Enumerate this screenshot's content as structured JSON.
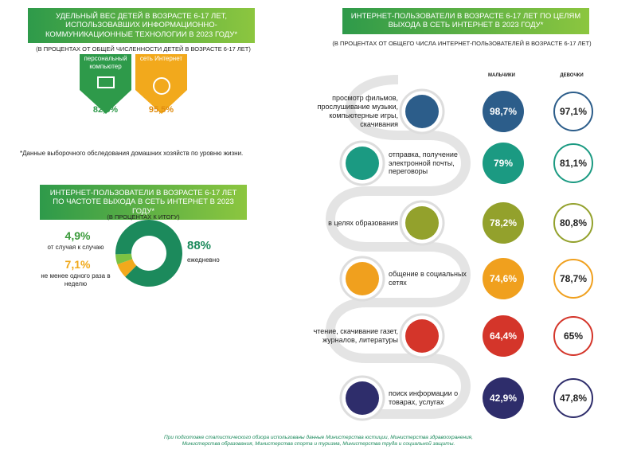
{
  "panel_devices": {
    "title": "УДЕЛЬНЫЙ ВЕС ДЕТЕЙ В ВОЗРАСТЕ 6-17 ЛЕТ, ИСПОЛЬЗОВАВШИХ ИНФОРМАЦИОННО-КОММУНИКАЦИОННЫЕ ТЕХНОЛОГИИ В 2023 ГОДУ*",
    "subtitle": "(В ПРОЦЕНТАХ ОТ ОБЩЕЙ ЧИСЛЕННОСТИ ДЕТЕЙ В ВОЗРАСТЕ 6-17 ЛЕТ)",
    "items": [
      {
        "label": "персональный компьютер",
        "value": "82,8%"
      },
      {
        "label": "сеть Интернет",
        "value": "95,5%"
      }
    ],
    "footnote": "*Данные выборочного обследования домашних хозяйств по уровню жизни."
  },
  "panel_frequency": {
    "title": "ИНТЕРНЕТ-ПОЛЬЗОВАТЕЛИ В ВОЗРАСТЕ 6-17 ЛЕТ ПО ЧАСТОТЕ ВЫХОДА В СЕТЬ ИНТЕРНЕТ В 2023 ГОДУ*",
    "subtitle": "(В ПРОЦЕНТАХ К ИТОГУ)",
    "type": "donut",
    "labels": [
      "от случая к случаю",
      "не менее одного раза в неделю",
      "ежедневно"
    ],
    "values": [
      4.9,
      7.1,
      88
    ],
    "value_labels": [
      "4,9%",
      "7,1%",
      "88%"
    ],
    "colors": [
      "#7cc242",
      "#f2a91c",
      "#1c8a5c"
    ]
  },
  "panel_purposes": {
    "title": "ИНТЕРНЕТ-ПОЛЬЗОВАТЕЛИ В ВОЗРАСТЕ 6-17 ЛЕТ ПО ЦЕЛЯМ ВЫХОДА В СЕТЬ ИНТЕРНЕТ В 2023 ГОДУ*",
    "subtitle": "(В ПРОЦЕНТАХ ОТ ОБЩЕГО ЧИСЛА ИНТЕРНЕТ-ПОЛЬЗОВАТЕЛЕЙ В ВОЗРАСТЕ 6-17 ЛЕТ)",
    "legend": [
      "МАЛЬЧИКИ",
      "ДЕВОЧКИ"
    ],
    "rows": [
      {
        "label": "просмотр фильмов, прослушивание музыки, компьютерные игры, скачивания",
        "boys": "98,7%",
        "girls": "97,1%",
        "color": "#2c5d8a"
      },
      {
        "label": "отправка, получение электронной почты, переговоры",
        "boys": "79%",
        "girls": "81,1%",
        "color": "#1b9a82"
      },
      {
        "label": "в целях образования",
        "boys": "78,2%",
        "girls": "80,8%",
        "color": "#93a12c"
      },
      {
        "label": "общение в социальных сетях",
        "boys": "74,6%",
        "girls": "78,7%",
        "color": "#f0a01e"
      },
      {
        "label": "чтение, скачивание газет, журналов, литературы",
        "boys": "64,4%",
        "girls": "65%",
        "color": "#d4352a"
      },
      {
        "label": "поиск информации о товарах, услугах",
        "boys": "42,9%",
        "girls": "47,8%",
        "color": "#2e2d6b"
      }
    ]
  },
  "source": "При подготовке статистического обзора использованы данные Министерства юстиции, Министерства здравоохранения, Министерства образования, Министерства спорта и туризма, Министерства труда и социальной защиты."
}
